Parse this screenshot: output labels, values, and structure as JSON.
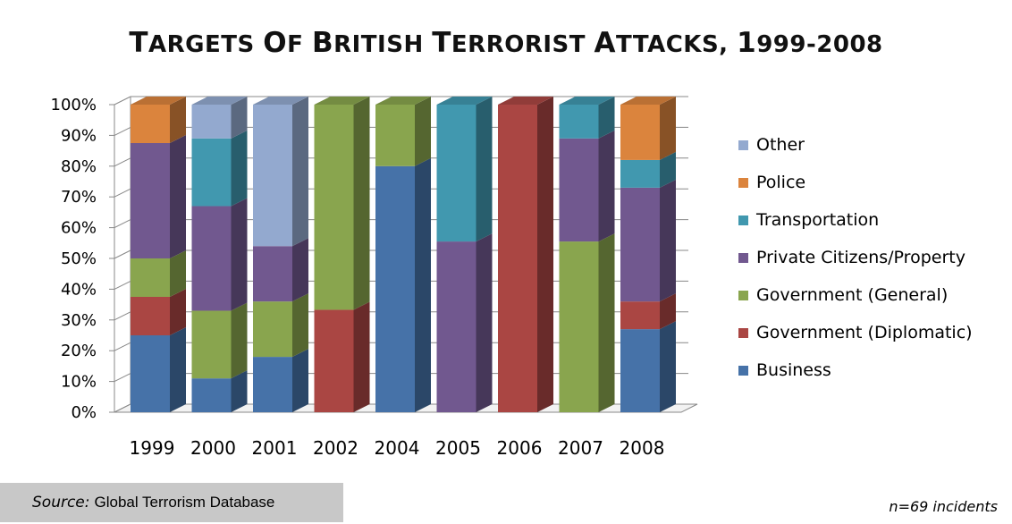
{
  "title_main": "TARGETS OF BRITISH TERRORIST ATTACKS, 1999-2008",
  "source_prefix": "Source:",
  "source_value": "Global Terrorism Database",
  "note": "n=69 incidents",
  "colors": {
    "Business": "#4672a8",
    "Government (Diplomatic)": "#aa4643",
    "Government (General)": "#89a54e",
    "Private Citizens/Property": "#71588f",
    "Transportation": "#4198af",
    "Police": "#db843d",
    "Other": "#93a9cf"
  },
  "chart_data": {
    "type": "bar",
    "stacked": true,
    "percent": true,
    "title": "TARGETS OF BRITISH TERRORIST ATTACKS, 1999-2008",
    "categories": [
      "1999",
      "2000",
      "2001",
      "2002",
      "2004",
      "2005",
      "2006",
      "2007",
      "2008"
    ],
    "yticks": [
      "0%",
      "10%",
      "20%",
      "30%",
      "40%",
      "50%",
      "60%",
      "70%",
      "80%",
      "90%",
      "100%"
    ],
    "ylim": [
      0,
      100
    ],
    "legend_position": "right",
    "series": [
      {
        "name": "Business",
        "values": [
          25,
          11,
          18,
          0,
          80,
          0,
          0,
          0,
          27
        ]
      },
      {
        "name": "Government (Diplomatic)",
        "values": [
          12.5,
          0,
          0,
          33.3,
          0,
          0,
          100,
          0,
          9
        ]
      },
      {
        "name": "Government (General)",
        "values": [
          12.5,
          22,
          18,
          66.7,
          20,
          0,
          0,
          55.5,
          0
        ]
      },
      {
        "name": "Private Citizens/Property",
        "values": [
          37.5,
          34,
          18,
          0,
          0,
          55.5,
          0,
          33.5,
          37
        ]
      },
      {
        "name": "Transportation",
        "values": [
          0,
          22,
          0,
          0,
          0,
          44.5,
          0,
          11,
          9
        ]
      },
      {
        "name": "Police",
        "values": [
          12.5,
          0,
          0,
          0,
          0,
          0,
          0,
          0,
          18
        ]
      },
      {
        "name": "Other",
        "values": [
          0,
          11,
          46,
          0,
          0,
          0,
          0,
          0,
          0
        ]
      }
    ],
    "legend_order": [
      "Other",
      "Police",
      "Transportation",
      "Private Citizens/Property",
      "Government (General)",
      "Government (Diplomatic)",
      "Business"
    ]
  }
}
